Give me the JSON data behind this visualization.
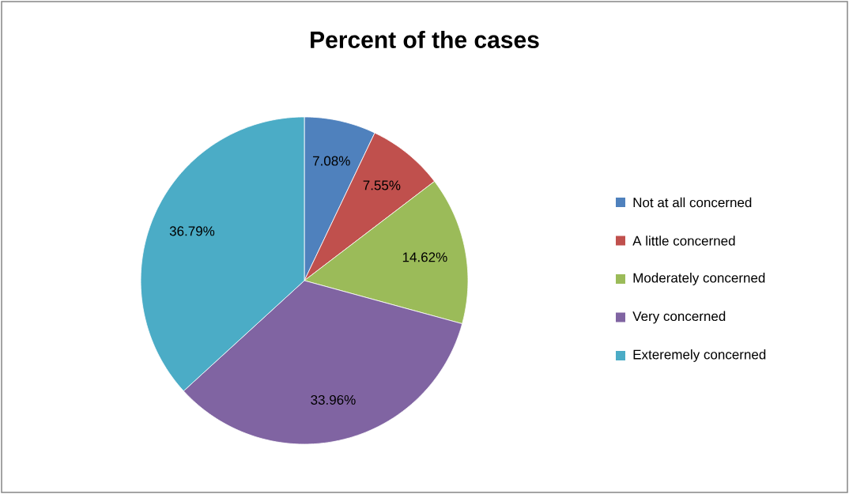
{
  "chart_data": {
    "type": "pie",
    "title": "Percent of the cases",
    "categories": [
      "Not at all concerned",
      "A little concerned",
      "Moderately concerned",
      "Very concerned",
      "Exteremely concerned"
    ],
    "values": [
      7.08,
      7.55,
      14.62,
      33.96,
      36.79
    ],
    "value_labels": [
      "7.08%",
      "7.55%",
      "14.62%",
      "33.96%",
      "36.79%"
    ],
    "colors": [
      "#4f81bd",
      "#c0504d",
      "#9bbb59",
      "#8064a2",
      "#4bacc6"
    ],
    "legend": "right"
  }
}
